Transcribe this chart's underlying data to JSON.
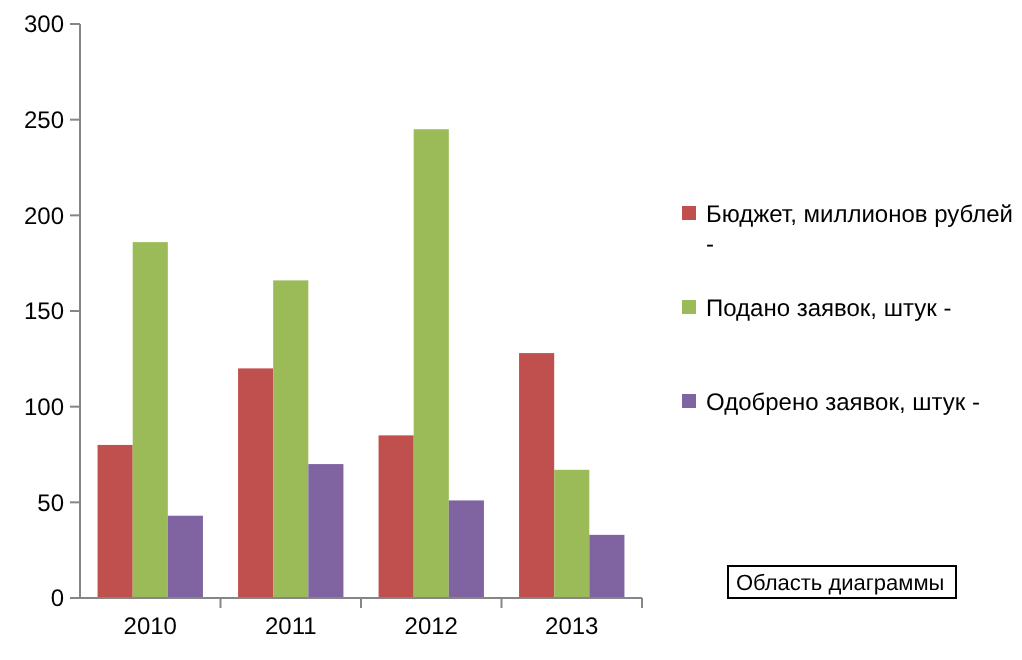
{
  "chart_data": {
    "type": "bar",
    "categories": [
      "2010",
      "2011",
      "2012",
      "2013"
    ],
    "series": [
      {
        "name": "Бюджет, миллионов рублей -",
        "color": "#c0504d",
        "values": [
          80,
          120,
          85,
          128
        ]
      },
      {
        "name": "Подано заявок, штук -",
        "color": "#9bbb59",
        "values": [
          186,
          166,
          245,
          67
        ]
      },
      {
        "name": "Одобрено заявок, штук -",
        "color": "#8064a2",
        "values": [
          43,
          70,
          51,
          33
        ]
      }
    ],
    "ylim": [
      0,
      300
    ],
    "yticks": [
      0,
      50,
      100,
      150,
      200,
      250,
      300
    ],
    "grid": false,
    "legend": "right",
    "annotations": [
      "Область диаграммы"
    ]
  }
}
